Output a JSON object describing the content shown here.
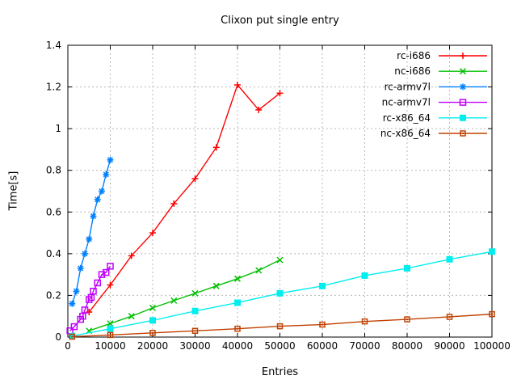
{
  "title": "Clixon put single entry",
  "chart_data": {
    "type": "line",
    "title": "Clixon put single entry",
    "xlabel": "Entries",
    "ylabel": "Time[s]",
    "xlim": [
      0,
      100000
    ],
    "ylim": [
      0,
      1.4
    ],
    "x_ticks": [
      0,
      10000,
      20000,
      30000,
      40000,
      50000,
      60000,
      70000,
      80000,
      90000,
      100000
    ],
    "x_tick_labels": [
      "0",
      "10000",
      "20000",
      "30000",
      "40000",
      "50000",
      "60000",
      "70000",
      "80000",
      "90000",
      "100000"
    ],
    "y_ticks": [
      0,
      0.2,
      0.4,
      0.6,
      0.8,
      1,
      1.2,
      1.4
    ],
    "y_tick_labels": [
      "0",
      "0.2",
      "0.4",
      "0.6",
      "0.8",
      "1",
      "1.2",
      "1.4"
    ],
    "grid": true,
    "legend_position": "top-right-inside",
    "axis_color": "#000000",
    "grid_color": "#b8b8b8",
    "series": [
      {
        "name": "rc-i686",
        "color": "#ff0000",
        "marker": "plus",
        "x": [
          5000,
          10000,
          15000,
          20000,
          25000,
          30000,
          35000,
          40000,
          45000,
          50000
        ],
        "y": [
          0.12,
          0.25,
          0.39,
          0.5,
          0.64,
          0.76,
          0.91,
          1.21,
          1.09,
          1.17
        ]
      },
      {
        "name": "nc-i686",
        "color": "#00c000",
        "marker": "cross",
        "x": [
          5000,
          10000,
          15000,
          20000,
          25000,
          30000,
          35000,
          40000,
          45000,
          50000
        ],
        "y": [
          0.03,
          0.065,
          0.1,
          0.14,
          0.175,
          0.21,
          0.245,
          0.28,
          0.32,
          0.37
        ]
      },
      {
        "name": "rc-armv7l",
        "color": "#0080ff",
        "marker": "asterisk",
        "x": [
          1000,
          2000,
          3000,
          4000,
          5000,
          6000,
          7000,
          8000,
          9000,
          10000
        ],
        "y": [
          0.16,
          0.22,
          0.33,
          0.4,
          0.47,
          0.58,
          0.66,
          0.7,
          0.78,
          0.85
        ]
      },
      {
        "name": "nc-armv7l",
        "color": "#c000ff",
        "marker": "open-square",
        "x": [
          500,
          1500,
          3000,
          3500,
          4000,
          5000,
          5500,
          6000,
          7000,
          8000,
          9000,
          10000
        ],
        "y": [
          0.03,
          0.05,
          0.085,
          0.1,
          0.13,
          0.18,
          0.19,
          0.22,
          0.26,
          0.3,
          0.31,
          0.34
        ]
      },
      {
        "name": "rc-x86_64",
        "color": "#00eeee",
        "marker": "filled-square",
        "x": [
          1000,
          10000,
          20000,
          30000,
          40000,
          50000,
          60000,
          70000,
          80000,
          90000,
          100000
        ],
        "y": [
          0.005,
          0.04,
          0.08,
          0.125,
          0.165,
          0.21,
          0.245,
          0.295,
          0.33,
          0.373,
          0.41
        ]
      },
      {
        "name": "nc-x86_64",
        "color": "#c04000",
        "marker": "dot-square",
        "x": [
          1000,
          10000,
          20000,
          30000,
          40000,
          50000,
          60000,
          70000,
          80000,
          90000,
          100000
        ],
        "y": [
          0.002,
          0.01,
          0.02,
          0.03,
          0.04,
          0.052,
          0.06,
          0.075,
          0.085,
          0.097,
          0.11
        ]
      }
    ]
  }
}
